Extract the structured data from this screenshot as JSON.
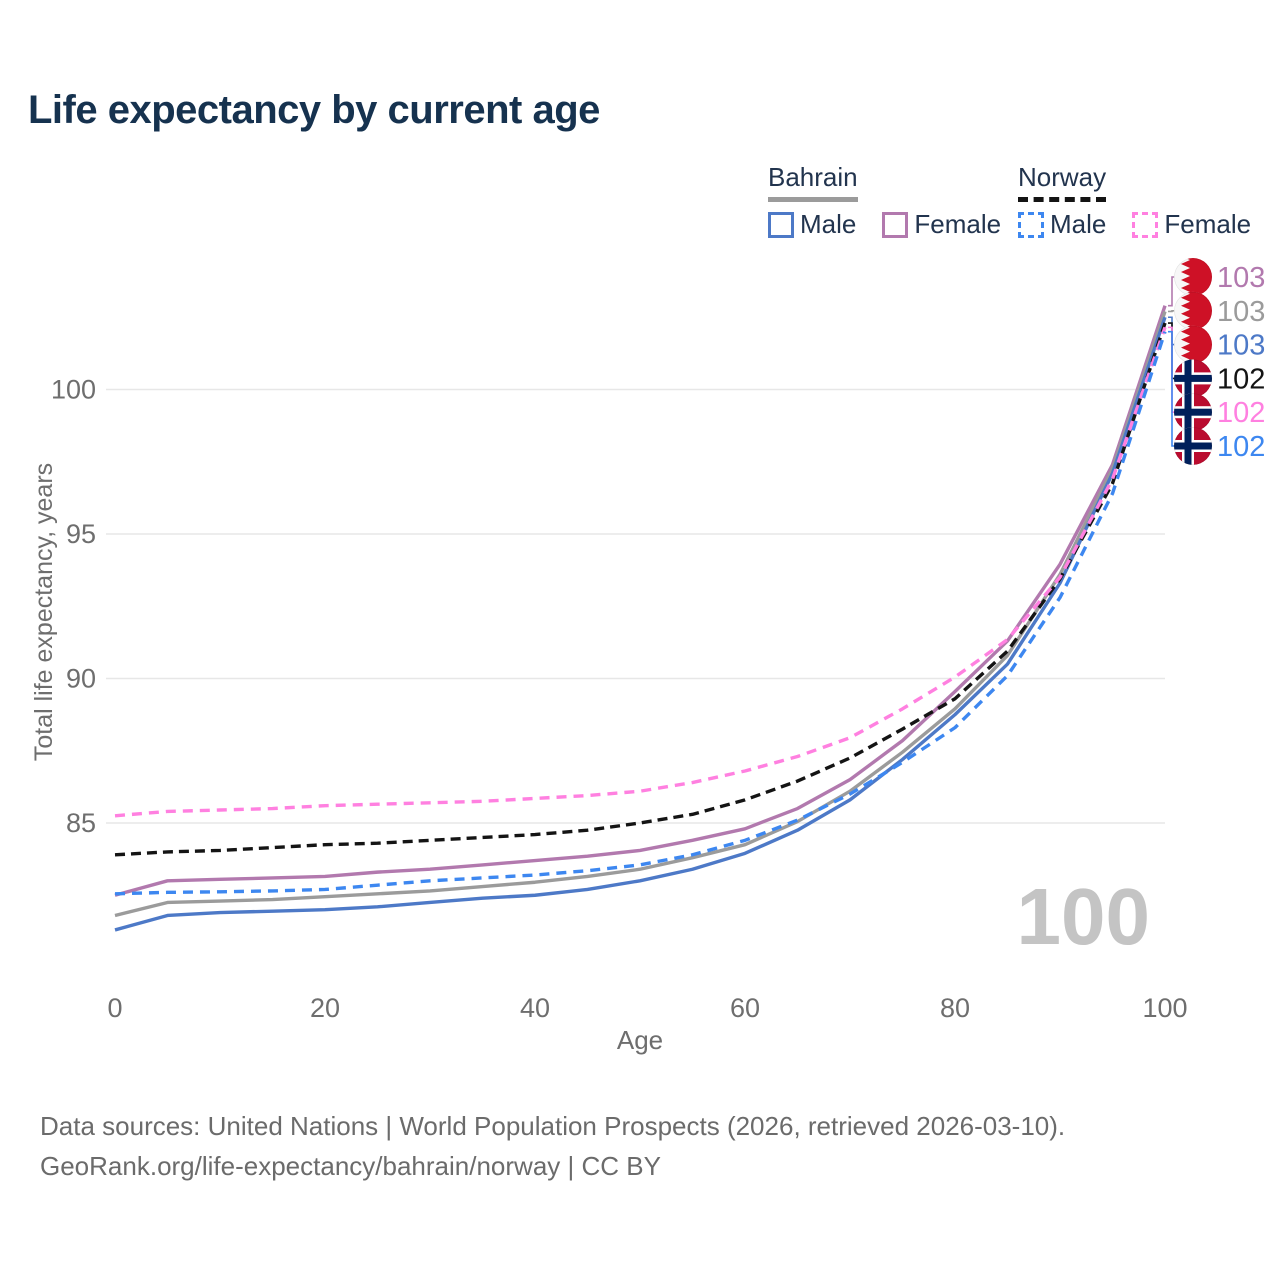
{
  "title": "Life expectancy by current age",
  "legend": {
    "groups": [
      {
        "id": "bahrain",
        "label": "Bahrain",
        "underline_style": "solid",
        "underline_color": "#9b9b9b",
        "items": [
          {
            "label": "Male",
            "swatch_style": "solid",
            "color": "#4d79c7"
          },
          {
            "label": "Female",
            "swatch_style": "solid",
            "color": "#b279ae"
          }
        ]
      },
      {
        "id": "norway",
        "label": "Norway",
        "underline_style": "dashed",
        "underline_color": "#141414",
        "items": [
          {
            "label": "Male",
            "swatch_style": "dashed",
            "color": "#3d87f0"
          },
          {
            "label": "Female",
            "swatch_style": "dashed",
            "color": "#ff80e0"
          }
        ]
      }
    ]
  },
  "chart_data": {
    "type": "line",
    "title": "Life expectancy by current age",
    "xlabel": "Age",
    "ylabel": "Total life expectancy, years",
    "x_ticks": [
      0,
      20,
      40,
      60,
      80,
      100
    ],
    "y_ticks": [
      85,
      90,
      95,
      100
    ],
    "xlim": [
      0,
      100
    ],
    "ylim": [
      81,
      103.5
    ],
    "grid": "horizontal",
    "axis_text_color": "#6e6e6e",
    "grid_color": "#e7e7e7",
    "ages": [
      0,
      5,
      10,
      15,
      20,
      25,
      30,
      35,
      40,
      45,
      50,
      55,
      60,
      65,
      70,
      75,
      80,
      85,
      90,
      95,
      100
    ],
    "series": [
      {
        "id": "bahrain_female",
        "name": "Bahrain Female",
        "color": "#b279ae",
        "dash": "",
        "values": [
          82.5,
          83.0,
          83.05,
          83.1,
          83.15,
          83.3,
          83.4,
          83.55,
          83.7,
          83.85,
          84.05,
          84.4,
          84.8,
          85.5,
          86.5,
          87.85,
          89.55,
          91.3,
          93.95,
          97.4,
          102.9
        ]
      },
      {
        "id": "bahrain_total",
        "name": "Bahrain",
        "color": "#9b9b9b",
        "dash": "",
        "values": [
          81.8,
          82.25,
          82.3,
          82.35,
          82.45,
          82.55,
          82.65,
          82.8,
          82.95,
          83.15,
          83.4,
          83.8,
          84.25,
          85.05,
          86.1,
          87.45,
          88.95,
          90.8,
          93.6,
          97.25,
          102.7
        ]
      },
      {
        "id": "bahrain_male",
        "name": "Bahrain Male",
        "color": "#4d79c7",
        "dash": "",
        "values": [
          81.3,
          81.8,
          81.9,
          81.95,
          82.0,
          82.1,
          82.25,
          82.4,
          82.5,
          82.7,
          83.0,
          83.4,
          83.95,
          84.75,
          85.8,
          87.2,
          88.75,
          90.5,
          93.3,
          97.1,
          102.5
        ]
      },
      {
        "id": "norway_total",
        "name": "Norway",
        "color": "#141414",
        "dash": "10 6",
        "values": [
          83.9,
          84.0,
          84.05,
          84.15,
          84.25,
          84.3,
          84.4,
          84.5,
          84.6,
          84.75,
          85.0,
          85.3,
          85.8,
          86.45,
          87.25,
          88.25,
          89.3,
          90.95,
          93.45,
          96.75,
          102.3
        ]
      },
      {
        "id": "norway_female",
        "name": "Norway Female",
        "color": "#ff80e0",
        "dash": "10 7",
        "values": [
          85.25,
          85.4,
          85.45,
          85.5,
          85.6,
          85.65,
          85.7,
          85.75,
          85.85,
          85.95,
          86.1,
          86.4,
          86.8,
          87.3,
          87.95,
          88.95,
          90.05,
          91.35,
          93.5,
          96.9,
          102.15
        ]
      },
      {
        "id": "norway_male",
        "name": "Norway Male",
        "color": "#3d87f0",
        "dash": "10 7",
        "values": [
          82.55,
          82.6,
          82.62,
          82.65,
          82.7,
          82.85,
          83.0,
          83.1,
          83.2,
          83.35,
          83.55,
          83.9,
          84.4,
          85.1,
          86.0,
          87.1,
          88.3,
          90.1,
          92.8,
          96.4,
          102.0
        ]
      }
    ],
    "end_labels": [
      {
        "series": "bahrain_female",
        "flag": "bahrain",
        "value": "103",
        "color": "#b279ae"
      },
      {
        "series": "bahrain_total",
        "flag": "bahrain",
        "value": "103",
        "color": "#9b9b9b"
      },
      {
        "series": "bahrain_male",
        "flag": "bahrain",
        "value": "103",
        "color": "#4d79c7"
      },
      {
        "series": "norway_total",
        "flag": "norway",
        "value": "102",
        "color": "#141414"
      },
      {
        "series": "norway_female",
        "flag": "norway",
        "value": "102",
        "color": "#ff80e0"
      },
      {
        "series": "norway_male",
        "flag": "norway",
        "value": "102",
        "color": "#3d87f0"
      }
    ],
    "flag_colors": {
      "bahrain_red": "#ce1126",
      "bahrain_white": "#f7f7f7",
      "norway_red": "#ba0c2f",
      "norway_blue": "#00205b",
      "norway_white": "#ffffff"
    },
    "age_counter": "100",
    "age_counter_color": "#c4c4c4"
  },
  "footer": {
    "line1": "Data sources: United Nations | World Population Prospects (2026, retrieved 2026-03-10).",
    "line2": "GeoRank.org/life-expectancy/bahrain/norway | CC BY"
  }
}
